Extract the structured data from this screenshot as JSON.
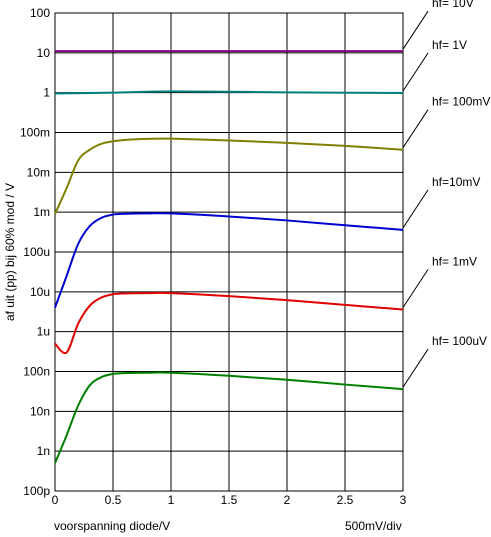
{
  "chart_data": {
    "type": "line",
    "ylabel": "af uit (pp) bij 60% mod / V",
    "xlabel": "voorspanning diode/V",
    "scale_note": "500mV/div",
    "xlim": [
      0,
      3
    ],
    "ylim": [
      1e-10,
      100
    ],
    "y_scale": "log",
    "grid": true,
    "x_ticks": [
      {
        "value": 0,
        "label": "0"
      },
      {
        "value": 0.5,
        "label": "0.5"
      },
      {
        "value": 1,
        "label": "1"
      },
      {
        "value": 1.5,
        "label": "1.5"
      },
      {
        "value": 2,
        "label": "2"
      },
      {
        "value": 2.5,
        "label": "2.5"
      },
      {
        "value": 3,
        "label": "3"
      }
    ],
    "y_ticks": [
      {
        "value": 100,
        "label": "100"
      },
      {
        "value": 10,
        "label": "10"
      },
      {
        "value": 1,
        "label": "1"
      },
      {
        "value": 0.1,
        "label": "100m"
      },
      {
        "value": 0.01,
        "label": "10m"
      },
      {
        "value": 0.001,
        "label": "1m"
      },
      {
        "value": 0.0001,
        "label": "100u"
      },
      {
        "value": 1e-05,
        "label": "10u"
      },
      {
        "value": 1e-06,
        "label": "1u"
      },
      {
        "value": 1e-07,
        "label": "100n"
      },
      {
        "value": 1e-08,
        "label": "10n"
      },
      {
        "value": 1e-09,
        "label": "1n"
      },
      {
        "value": 1e-10,
        "label": "100p"
      }
    ],
    "series": [
      {
        "name": "hf= 10V",
        "color": "#800080",
        "x": [
          0,
          3
        ],
        "y": [
          11,
          11
        ]
      },
      {
        "name": "hf= 1V",
        "color": "#008080",
        "x": [
          0,
          0.5,
          1,
          2,
          3
        ],
        "y": [
          0.95,
          1.0,
          1.08,
          1.02,
          0.98
        ]
      },
      {
        "name": "hf= 100mV",
        "color": "#808000",
        "x": [
          0,
          0.1,
          0.2,
          0.3,
          0.4,
          0.5,
          0.6,
          0.8,
          1,
          1.5,
          2,
          2.5,
          3
        ],
        "y": [
          0.0009,
          0.004,
          0.02,
          0.037,
          0.052,
          0.06,
          0.065,
          0.069,
          0.07,
          0.063,
          0.055,
          0.046,
          0.037
        ]
      },
      {
        "name": "hf=10mV",
        "color": "#0000d0",
        "x": [
          0,
          0.1,
          0.2,
          0.3,
          0.4,
          0.5,
          0.6,
          0.8,
          1,
          1.5,
          2,
          2.5,
          3
        ],
        "y": [
          4e-06,
          2.5e-05,
          0.00016,
          0.00045,
          0.00072,
          0.00087,
          0.00091,
          0.00093,
          0.00093,
          0.00078,
          0.00062,
          0.00047,
          0.00036
        ]
      },
      {
        "name": "hf= 1mV",
        "color": "#e00000",
        "x": [
          0,
          0.1,
          0.2,
          0.3,
          0.4,
          0.5,
          0.6,
          0.8,
          1,
          1.5,
          2,
          2.5,
          3
        ],
        "y": [
          5e-07,
          3e-07,
          1.6e-06,
          4.5e-06,
          7.2e-06,
          8.7e-06,
          9.1e-06,
          9.3e-06,
          9.3e-06,
          7.8e-06,
          6.2e-06,
          4.7e-06,
          3.6e-06
        ]
      },
      {
        "name": "hf= 100uV",
        "color": "#008000",
        "x": [
          0,
          0.1,
          0.2,
          0.3,
          0.4,
          0.5,
          0.6,
          0.8,
          1,
          1.5,
          2,
          2.5,
          3
        ],
        "y": [
          5e-10,
          2.5e-09,
          1.4e-08,
          4.5e-08,
          7.2e-08,
          8.7e-08,
          9.1e-08,
          9.3e-08,
          9.3e-08,
          7.8e-08,
          6.2e-08,
          4.7e-08,
          3.6e-08
        ]
      }
    ]
  }
}
